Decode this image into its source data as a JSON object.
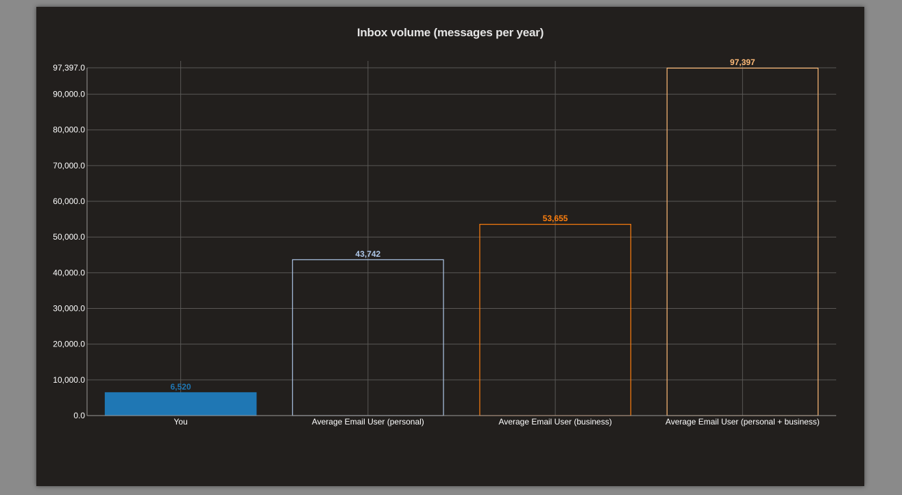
{
  "chart_data": {
    "type": "bar",
    "title": "Inbox volume (messages per year)",
    "xlabel": "",
    "ylabel": "",
    "categories": [
      "You",
      "Average Email User (personal)",
      "Average Email User (business)",
      "Average Email User (personal + business)"
    ],
    "values": [
      6520,
      43742,
      53655,
      97397
    ],
    "value_labels": [
      "6,520",
      "43,742",
      "53,655",
      "97,397"
    ],
    "ylim": [
      0,
      97397
    ],
    "yticks": [
      0,
      10000,
      20000,
      30000,
      40000,
      50000,
      60000,
      70000,
      80000,
      90000,
      97397
    ],
    "ytick_labels": [
      "0.0",
      "10,000.0",
      "20,000.0",
      "30,000.0",
      "40,000.0",
      "50,000.0",
      "60,000.0",
      "70,000.0",
      "80,000.0",
      "90,000.0",
      "97,397.0"
    ],
    "grid": true,
    "legend": "none",
    "bar_styles": [
      {
        "fill": "#1f77b4",
        "stroke": "#1f77b4",
        "label_color": "#1f77b4"
      },
      {
        "fill": "none",
        "stroke": "#aec7e8",
        "label_color": "#aec7e8"
      },
      {
        "fill": "none",
        "stroke": "#ff7f0e",
        "label_color": "#ff7f0e"
      },
      {
        "fill": "none",
        "stroke": "#ffbb78",
        "label_color": "#ffbb78"
      }
    ],
    "colors": {
      "background": "#221f1d",
      "grid": "#5a5856",
      "axis": "#9a9896",
      "text": "#ffffff"
    }
  }
}
